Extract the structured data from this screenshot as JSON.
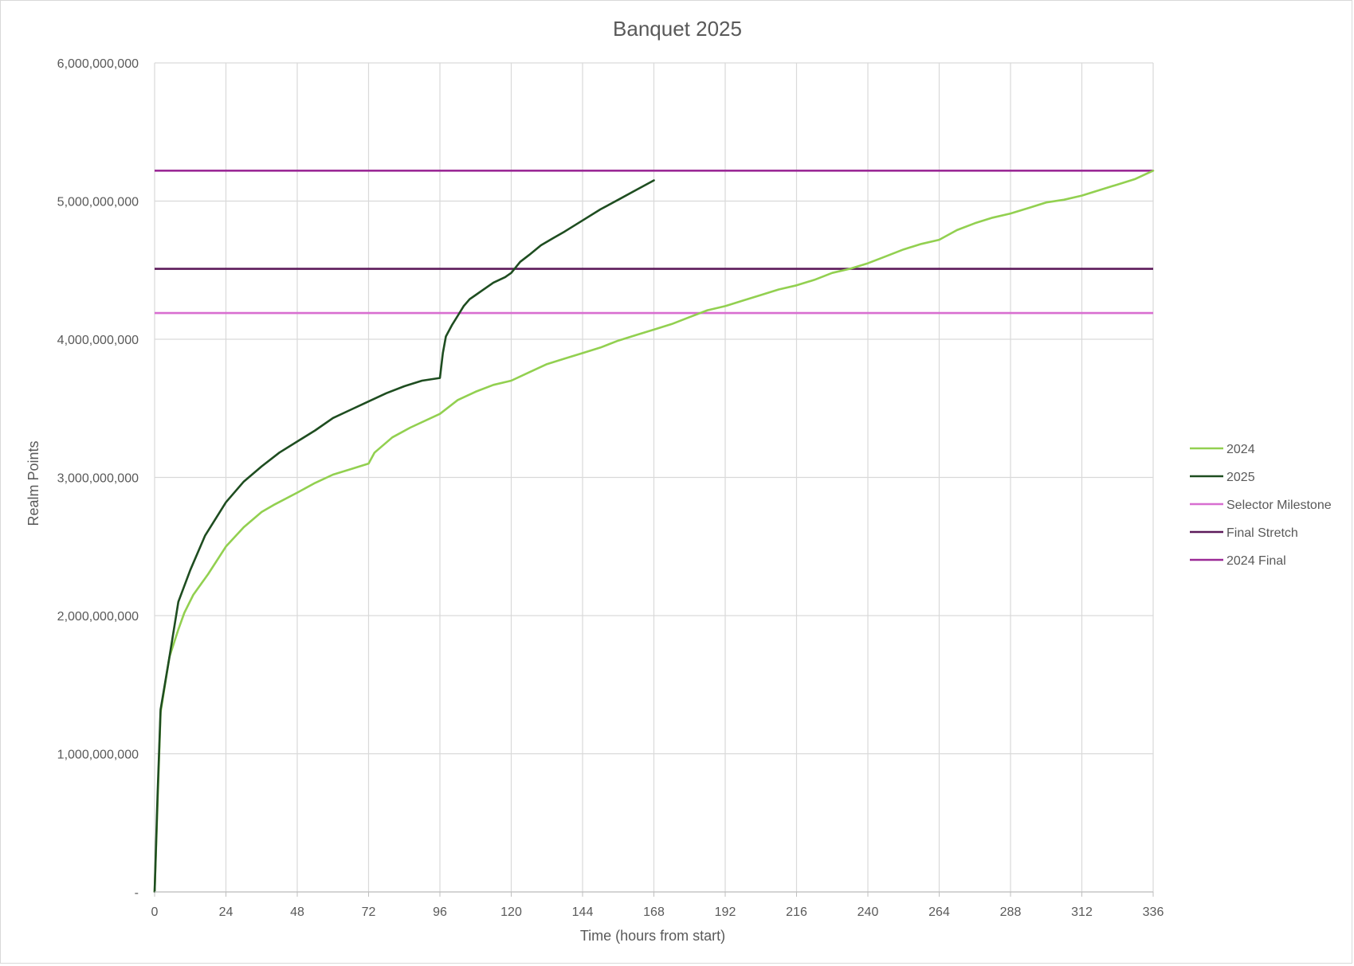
{
  "chart_data": {
    "type": "line",
    "title": "Banquet 2025",
    "xlabel": "Time (hours from start)",
    "ylabel": "Realm Points",
    "xlim": [
      0,
      336
    ],
    "ylim": [
      0,
      6000000000
    ],
    "x_ticks": [
      0,
      24,
      48,
      72,
      96,
      120,
      144,
      168,
      192,
      216,
      240,
      264,
      288,
      312,
      336
    ],
    "x_tick_labels": [
      "0",
      "24",
      "48",
      "72",
      "96",
      "120",
      "144",
      "168",
      "192",
      "216",
      "240",
      "264",
      "288",
      "312",
      "336"
    ],
    "y_ticks": [
      0,
      1000000000,
      2000000000,
      3000000000,
      4000000000,
      5000000000,
      6000000000
    ],
    "y_tick_labels": [
      "-",
      "1,000,000,000",
      "2,000,000,000",
      "3,000,000,000",
      "4,000,000,000",
      "5,000,000,000",
      "6,000,000,000"
    ],
    "grid": true,
    "legend_position": "right",
    "series": [
      {
        "name": "2024",
        "color": "#92d050",
        "kind": "line",
        "x": [
          0,
          2,
          5,
          8,
          10,
          13,
          18,
          24,
          30,
          36,
          40,
          48,
          54,
          60,
          66,
          72,
          74,
          80,
          86,
          96,
          102,
          108,
          114,
          120,
          126,
          132,
          138,
          144,
          150,
          156,
          162,
          168,
          174,
          180,
          186,
          192,
          198,
          204,
          210,
          216,
          222,
          228,
          234,
          240,
          246,
          252,
          258,
          264,
          270,
          276,
          282,
          288,
          294,
          300,
          306,
          312,
          318,
          324,
          330,
          336
        ],
        "y": [
          0,
          1300000000,
          1700000000,
          1900000000,
          2020000000,
          2150000000,
          2300000000,
          2500000000,
          2640000000,
          2750000000,
          2800000000,
          2890000000,
          2960000000,
          3020000000,
          3060000000,
          3100000000,
          3180000000,
          3290000000,
          3360000000,
          3460000000,
          3560000000,
          3620000000,
          3670000000,
          3700000000,
          3760000000,
          3820000000,
          3860000000,
          3900000000,
          3940000000,
          3990000000,
          4030000000,
          4070000000,
          4110000000,
          4160000000,
          4210000000,
          4240000000,
          4280000000,
          4320000000,
          4360000000,
          4390000000,
          4430000000,
          4480000000,
          4510000000,
          4550000000,
          4600000000,
          4650000000,
          4690000000,
          4720000000,
          4790000000,
          4840000000,
          4880000000,
          4910000000,
          4950000000,
          4990000000,
          5010000000,
          5040000000,
          5080000000,
          5120000000,
          5160000000,
          5220000000
        ]
      },
      {
        "name": "2025",
        "color": "#1e4d20",
        "kind": "line",
        "x": [
          0,
          1,
          2,
          5,
          8,
          12,
          17,
          24,
          30,
          36,
          42,
          48,
          54,
          60,
          66,
          72,
          78,
          84,
          90,
          96,
          97,
          98,
          100,
          102,
          104,
          106,
          108,
          110,
          114,
          118,
          120,
          123,
          126,
          130,
          134,
          138,
          144,
          150,
          156,
          162,
          168
        ],
        "y": [
          0,
          700000000,
          1320000000,
          1700000000,
          2100000000,
          2330000000,
          2580000000,
          2820000000,
          2970000000,
          3080000000,
          3180000000,
          3260000000,
          3340000000,
          3430000000,
          3490000000,
          3550000000,
          3610000000,
          3660000000,
          3700000000,
          3720000000,
          3900000000,
          4020000000,
          4100000000,
          4170000000,
          4240000000,
          4290000000,
          4320000000,
          4350000000,
          4410000000,
          4450000000,
          4480000000,
          4560000000,
          4610000000,
          4680000000,
          4730000000,
          4780000000,
          4860000000,
          4940000000,
          5010000000,
          5080000000,
          5150000000
        ]
      },
      {
        "name": "Selector Milestone",
        "color": "#d86ed0",
        "kind": "hline",
        "value": 4190000000
      },
      {
        "name": "Final Stretch",
        "color": "#5c1a5a",
        "kind": "hline",
        "value": 4510000000
      },
      {
        "name": "2024 Final",
        "color": "#9b2a96",
        "kind": "hline",
        "value": 5220000000
      }
    ]
  }
}
